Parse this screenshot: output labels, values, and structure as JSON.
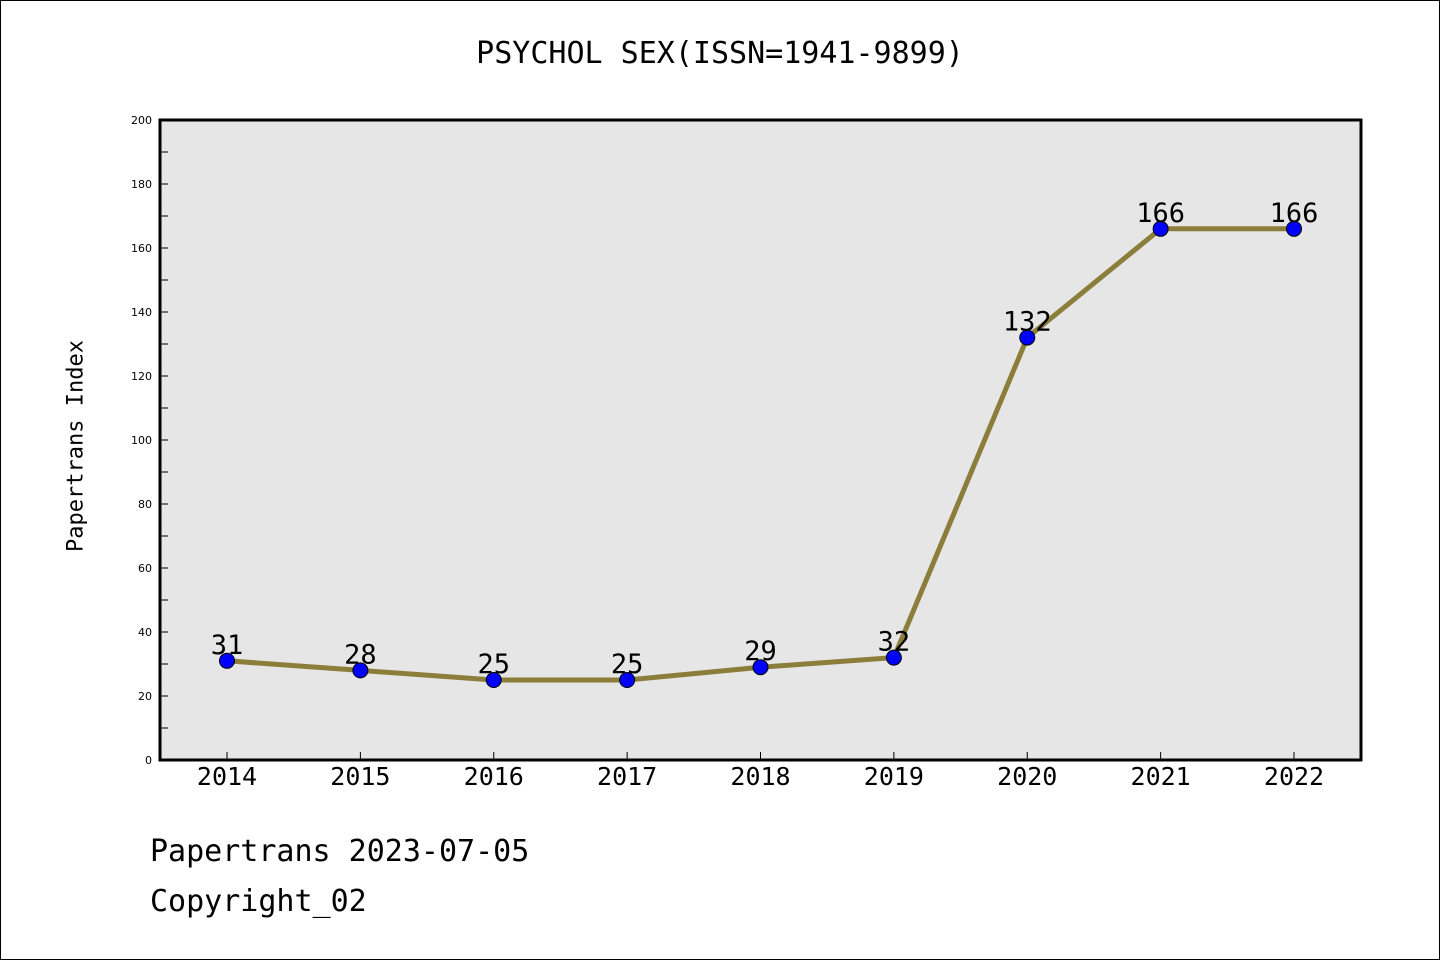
{
  "chart_data": {
    "type": "line",
    "title": "PSYCHOL SEX(ISSN=1941-9899)",
    "xlabel": "",
    "ylabel": "Papertrans Index",
    "categories": [
      "2014",
      "2015",
      "2016",
      "2017",
      "2018",
      "2019",
      "2020",
      "2021",
      "2022"
    ],
    "values": [
      31,
      28,
      25,
      25,
      29,
      32,
      132,
      166,
      166
    ],
    "data_labels": [
      "31",
      "28",
      "25",
      "25",
      "29",
      "32",
      "132",
      "166",
      "166"
    ],
    "ylim": [
      0,
      200
    ],
    "yticks": [
      0,
      20,
      40,
      60,
      80,
      100,
      120,
      140,
      160,
      180,
      200
    ],
    "grid": false,
    "colors": {
      "line": "#8b7d3a",
      "marker": "#0000ff",
      "plot_background": "#e6e6e6"
    }
  },
  "footer": {
    "line1": "Papertrans 2023-07-05",
    "line2": "Copyright_02"
  }
}
